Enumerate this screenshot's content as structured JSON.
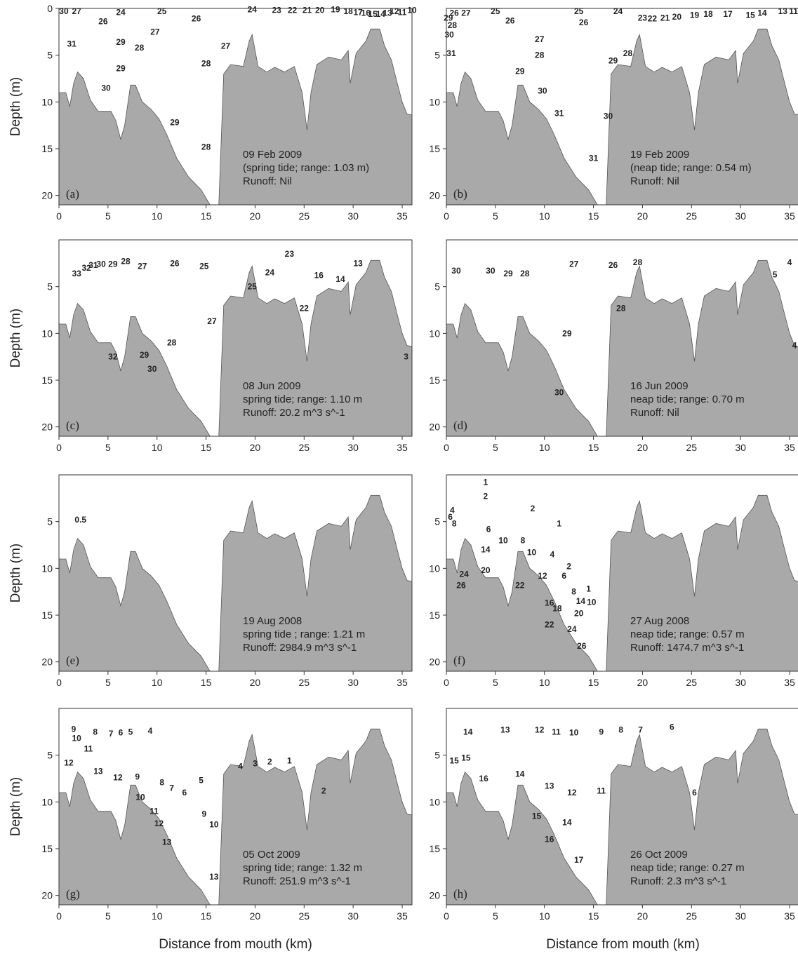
{
  "colors": {
    "bathymetry": "#a9a9a9",
    "contour": "#2b2b2b",
    "frame": "#333333"
  },
  "chart_data": {
    "type": "contour",
    "xlabel": "Distance from mouth (km)",
    "ylabel": "Depth (m)",
    "xlim": [
      0,
      36
    ],
    "ylim": [
      21,
      0
    ],
    "x_ticks": [
      "0",
      "5",
      "10",
      "15",
      "20",
      "25",
      "30",
      "35"
    ],
    "bathymetry": [
      [
        0,
        9
      ],
      [
        0.7,
        9
      ],
      [
        1.1,
        10.5
      ],
      [
        1.5,
        8
      ],
      [
        1.9,
        6.8
      ],
      [
        2.5,
        7.5
      ],
      [
        3.2,
        9.8
      ],
      [
        4,
        11
      ],
      [
        5.3,
        11
      ],
      [
        5.8,
        12
      ],
      [
        6.3,
        14
      ],
      [
        6.7,
        12.5
      ],
      [
        7.3,
        8.2
      ],
      [
        7.8,
        8.2
      ],
      [
        8.5,
        10
      ],
      [
        9.4,
        10.8
      ],
      [
        10.2,
        11.8
      ],
      [
        11,
        13.5
      ],
      [
        12,
        16
      ],
      [
        13.2,
        18
      ],
      [
        14.5,
        19.4
      ],
      [
        15.4,
        21
      ],
      [
        16.3,
        21
      ],
      [
        16.8,
        7
      ],
      [
        17.5,
        6
      ],
      [
        18.8,
        6.2
      ],
      [
        19.4,
        3.5
      ],
      [
        19.7,
        2.8
      ],
      [
        20.3,
        6.2
      ],
      [
        21.2,
        6.8
      ],
      [
        22,
        6.3
      ],
      [
        23,
        6.8
      ],
      [
        24,
        6.2
      ],
      [
        24.8,
        9
      ],
      [
        25.3,
        13
      ],
      [
        25.7,
        9
      ],
      [
        26.3,
        6
      ],
      [
        27.5,
        5.2
      ],
      [
        28.8,
        5.5
      ],
      [
        29.5,
        4.5
      ],
      [
        29.7,
        8
      ],
      [
        30.3,
        4.8
      ],
      [
        31.3,
        3.5
      ],
      [
        31.8,
        2.2
      ],
      [
        32.7,
        2.2
      ],
      [
        33.2,
        4
      ],
      [
        33.9,
        5.5
      ],
      [
        34.5,
        8
      ],
      [
        35,
        10
      ],
      [
        35.5,
        11.3
      ],
      [
        36,
        11.4
      ]
    ],
    "panels": [
      {
        "letter": "(a)",
        "y_ticks": [
          "0",
          "5",
          "10",
          "15",
          "20"
        ],
        "info": [
          "09 Feb 2009",
          "(spring tide; range: 1.03 m)",
          "Runoff: Nil"
        ],
        "labels": [
          [
            "30",
            0.5,
            0.3
          ],
          [
            "27",
            1.8,
            0.3
          ],
          [
            "26",
            4.5,
            1.4
          ],
          [
            "24",
            6.3,
            0.4
          ],
          [
            "25",
            10.5,
            0.3
          ],
          [
            "26",
            14,
            1.1
          ],
          [
            "27",
            9.8,
            2.5
          ],
          [
            "28",
            8.2,
            4.2
          ],
          [
            "29",
            6.3,
            3.6
          ],
          [
            "31",
            1.3,
            3.8
          ],
          [
            "29",
            6.3,
            6.4
          ],
          [
            "30",
            4.8,
            8.5
          ],
          [
            "29",
            11.8,
            12.2
          ],
          [
            "28",
            15,
            5.9
          ],
          [
            "28",
            15,
            14.8
          ],
          [
            "27",
            17,
            4
          ],
          [
            "24",
            19.7,
            0.1
          ],
          [
            "23",
            22.2,
            0.2
          ],
          [
            "22",
            23.8,
            0.2
          ],
          [
            "21",
            25.3,
            0.2
          ],
          [
            "20",
            26.6,
            0.2
          ],
          [
            "19",
            28.2,
            0.1
          ],
          [
            "18",
            29.5,
            0.3
          ],
          [
            "17",
            30.5,
            0.4
          ],
          [
            "16",
            31.3,
            0.5
          ],
          [
            "15",
            32,
            0.6
          ],
          [
            "14",
            32.8,
            0.6
          ],
          [
            "13",
            33.5,
            0.5
          ],
          [
            "12",
            34.2,
            0.3
          ],
          [
            "11",
            35,
            0.4
          ],
          [
            "10",
            36,
            0.2
          ]
        ]
      },
      {
        "letter": "(b)",
        "y_ticks": [
          "5",
          "10",
          "15",
          "20"
        ],
        "info": [
          "19 Feb 2009",
          "(neap tide; range: 0.54 m)",
          "Runoff: Nil"
        ],
        "labels": [
          [
            "29",
            0.2,
            1
          ],
          [
            "26",
            0.8,
            0.5
          ],
          [
            "27",
            2,
            0.5
          ],
          [
            "28",
            0.6,
            1.8
          ],
          [
            "30",
            0.3,
            2.8
          ],
          [
            "31",
            0.5,
            4.8
          ],
          [
            "25",
            5,
            0.3
          ],
          [
            "26",
            6.5,
            1.3
          ],
          [
            "25",
            13.5,
            0.3
          ],
          [
            "24",
            17.5,
            0.3
          ],
          [
            "26",
            14,
            1.5
          ],
          [
            "27",
            9.5,
            3.3
          ],
          [
            "28",
            9.5,
            5
          ],
          [
            "29",
            7.5,
            6.7
          ],
          [
            "29",
            17,
            5.6
          ],
          [
            "28",
            18.5,
            4.8
          ],
          [
            "30",
            9.8,
            8.8
          ],
          [
            "31",
            11.5,
            11.2
          ],
          [
            "30",
            16.5,
            11.5
          ],
          [
            "31",
            15,
            16
          ],
          [
            "23",
            20,
            1
          ],
          [
            "22",
            21,
            1.1
          ],
          [
            "21",
            22.3,
            1
          ],
          [
            "20",
            23.5,
            0.9
          ],
          [
            "19",
            25.3,
            0.7
          ],
          [
            "18",
            26.7,
            0.6
          ],
          [
            "17",
            28.7,
            0.6
          ],
          [
            "15",
            31,
            0.7
          ],
          [
            "14",
            32.2,
            0.5
          ],
          [
            "13",
            34.3,
            0.3
          ],
          [
            "11",
            35.4,
            0.3
          ]
        ]
      },
      {
        "letter": "(c)",
        "y_ticks": [
          "5",
          "10",
          "15",
          "20"
        ],
        "info": [
          "08 Jun 2009",
          "spring tide; range: 1.10 m",
          "Runoff: 20.2 m^3 s^-1"
        ],
        "labels": [
          [
            "33",
            1.8,
            3.6
          ],
          [
            "32",
            2.8,
            3
          ],
          [
            "31",
            3.5,
            2.7
          ],
          [
            "30",
            4.3,
            2.6
          ],
          [
            "29",
            5.5,
            2.6
          ],
          [
            "28",
            6.8,
            2.3
          ],
          [
            "27",
            8.5,
            2.8
          ],
          [
            "26",
            11.8,
            2.5
          ],
          [
            "25",
            14.8,
            2.8
          ],
          [
            "24",
            21.5,
            3.5
          ],
          [
            "23",
            23.5,
            1.5
          ],
          [
            "25",
            19.7,
            5
          ],
          [
            "16",
            26.5,
            3.8
          ],
          [
            "14",
            28.7,
            4.2
          ],
          [
            "13",
            30.5,
            2.5
          ],
          [
            "22",
            25,
            7.3
          ],
          [
            "27",
            15.6,
            8.7
          ],
          [
            "28",
            11.5,
            11
          ],
          [
            "29",
            8.7,
            12.3
          ],
          [
            "30",
            9.5,
            13.8
          ],
          [
            "32",
            5.5,
            12.5
          ],
          [
            "3",
            35.4,
            12.5
          ]
        ]
      },
      {
        "letter": "(d)",
        "y_ticks": [
          "5",
          "10",
          "15",
          "20"
        ],
        "info": [
          "16 Jun 2009",
          "neap tide; range: 0.70 m",
          "Runoff: Nil"
        ],
        "labels": [
          [
            "30",
            1,
            3.3
          ],
          [
            "30",
            4.5,
            3.3
          ],
          [
            "29",
            6.3,
            3.6
          ],
          [
            "28",
            8,
            3.6
          ],
          [
            "27",
            13,
            2.6
          ],
          [
            "26",
            17,
            2.7
          ],
          [
            "28",
            19.5,
            2.4
          ],
          [
            "28",
            17.8,
            7.3
          ],
          [
            "29",
            12.3,
            10
          ],
          [
            "30",
            11.5,
            16.3
          ],
          [
            "5",
            33.5,
            3.7
          ],
          [
            "4",
            35,
            2.4
          ],
          [
            "4",
            35.5,
            11.3
          ]
        ]
      },
      {
        "letter": "(e)",
        "y_ticks": [
          "5",
          "10",
          "15",
          "20"
        ],
        "info": [
          "19 Aug 2008",
          "spring tide ; range: 1.21 m",
          "Runoff: 2984.9 m^3 s^-1"
        ],
        "labels": [
          [
            "0.5",
            2.2,
            4.8
          ]
        ]
      },
      {
        "letter": "(f)",
        "y_ticks": [
          "5",
          "10",
          "15",
          "20"
        ],
        "info": [
          "27 Aug 2008",
          "neap tide; range: 0.57 m",
          "Runoff: 1474.7 m^3 s^-1"
        ],
        "labels": [
          [
            "1",
            4,
            0.8
          ],
          [
            "2",
            4,
            2.3
          ],
          [
            "1",
            11.5,
            5.2
          ],
          [
            "2",
            8.8,
            3.6
          ],
          [
            "4",
            0.6,
            3.8
          ],
          [
            "6",
            0.4,
            4.5
          ],
          [
            "8",
            0.8,
            5.2
          ],
          [
            "6",
            4.3,
            5.8
          ],
          [
            "10",
            5.8,
            7
          ],
          [
            "14",
            4,
            8
          ],
          [
            "8",
            7.8,
            7
          ],
          [
            "10",
            8.7,
            8.3
          ],
          [
            "4",
            10.8,
            8.5
          ],
          [
            "2",
            12.5,
            9.8
          ],
          [
            "12",
            9.8,
            10.8
          ],
          [
            "6",
            12,
            10.8
          ],
          [
            "8",
            13,
            12.5
          ],
          [
            "1",
            14.5,
            12.2
          ],
          [
            "16",
            10.5,
            13.7
          ],
          [
            "18",
            11.3,
            14.3
          ],
          [
            "20",
            13.5,
            14.8
          ],
          [
            "14",
            13.7,
            13.5
          ],
          [
            "10",
            14.8,
            13.6
          ],
          [
            "22",
            10.5,
            16
          ],
          [
            "24",
            12.8,
            16.5
          ],
          [
            "26",
            13.8,
            18.3
          ],
          [
            "22",
            7.5,
            11.8
          ],
          [
            "20",
            4,
            10.2
          ],
          [
            "24",
            1.8,
            10.6
          ],
          [
            "26",
            1.5,
            11.8
          ]
        ]
      },
      {
        "letter": "(g)",
        "y_ticks": [
          "5",
          "10",
          "15",
          "20"
        ],
        "info": [
          "05 Oct 2009",
          "spring tide; range: 1.32 m",
          "Runoff: 251.9 m^3 s^-1"
        ],
        "labels": [
          [
            "9",
            1.5,
            2.2
          ],
          [
            "8",
            3.7,
            2.5
          ],
          [
            "7",
            5.3,
            2.7
          ],
          [
            "6",
            6.3,
            2.6
          ],
          [
            "5",
            7.3,
            2.5
          ],
          [
            "4",
            9.3,
            2.4
          ],
          [
            "10",
            1.8,
            3.2
          ],
          [
            "11",
            3,
            4.3
          ],
          [
            "12",
            1,
            5.8
          ],
          [
            "13",
            4,
            6.7
          ],
          [
            "12",
            6,
            7.4
          ],
          [
            "9",
            8,
            7.3
          ],
          [
            "8",
            10.5,
            7.9
          ],
          [
            "7",
            11.5,
            8.5
          ],
          [
            "6",
            12.8,
            9
          ],
          [
            "5",
            14.5,
            7.7
          ],
          [
            "4",
            18.5,
            6.2
          ],
          [
            "3",
            20,
            5.9
          ],
          [
            "2",
            21.5,
            5.7
          ],
          [
            "1",
            23.5,
            5.6
          ],
          [
            "2",
            27,
            8.8
          ],
          [
            "10",
            8.3,
            9.5
          ],
          [
            "11",
            9.7,
            11
          ],
          [
            "9",
            14.8,
            11.3
          ],
          [
            "10",
            15.8,
            12.4
          ],
          [
            "12",
            10.2,
            12.3
          ],
          [
            "13",
            11,
            14.3
          ],
          [
            "13",
            15.8,
            18
          ]
        ]
      },
      {
        "letter": "(h)",
        "y_ticks": [
          "5",
          "10",
          "15",
          "20"
        ],
        "info": [
          "26 Oct 2009",
          "neap tide; range: 0.27 m",
          "Runoff: 2.3 m^3 s^-1"
        ],
        "labels": [
          [
            "14",
            2.2,
            2.5
          ],
          [
            "13",
            6,
            2.3
          ],
          [
            "12",
            9.5,
            2.3
          ],
          [
            "11",
            11.2,
            2.5
          ],
          [
            "10",
            13,
            2.6
          ],
          [
            "9",
            15.8,
            2.5
          ],
          [
            "8",
            17.8,
            2.3
          ],
          [
            "7",
            19.8,
            2.3
          ],
          [
            "6",
            23,
            2
          ],
          [
            "15",
            0.8,
            5.6
          ],
          [
            "15",
            2,
            5.3
          ],
          [
            "16",
            3.8,
            7.5
          ],
          [
            "14",
            7.5,
            7
          ],
          [
            "13",
            10.5,
            8.3
          ],
          [
            "12",
            12.8,
            9
          ],
          [
            "11",
            15.8,
            8.8
          ],
          [
            "15",
            9.2,
            11.5
          ],
          [
            "14",
            12.3,
            12.2
          ],
          [
            "16",
            10.5,
            14
          ],
          [
            "17",
            13.5,
            16.2
          ],
          [
            "6",
            25.3,
            9
          ]
        ]
      }
    ]
  }
}
